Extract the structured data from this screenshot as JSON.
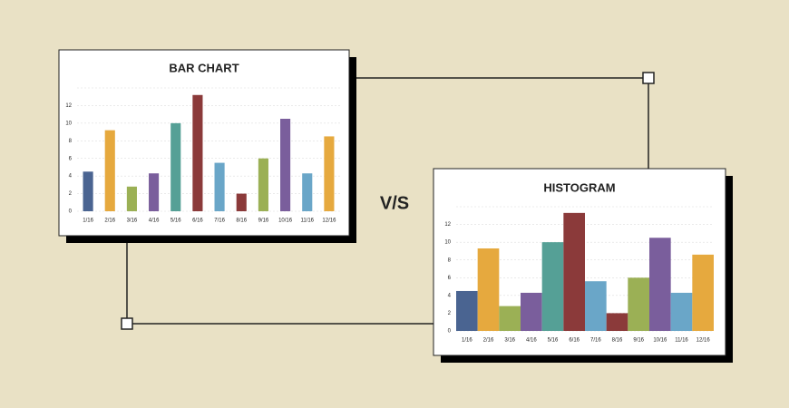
{
  "label": "V/S",
  "chart_data": [
    {
      "type": "bar",
      "title": "BAR CHART",
      "categories": [
        "1/16",
        "2/16",
        "3/16",
        "4/16",
        "5/16",
        "6/16",
        "7/16",
        "8/16",
        "9/16",
        "10/16",
        "11/16",
        "12/16"
      ],
      "values": [
        4.5,
        9.2,
        2.8,
        4.3,
        10,
        13.2,
        5.5,
        2,
        6,
        10.5,
        4.3,
        8.5
      ],
      "colors": [
        "#4a6491",
        "#e6a93e",
        "#9bb055",
        "#7a5e9c",
        "#55a096",
        "#8b3a3a",
        "#6aa6c8",
        "#8b3a3a",
        "#9bb055",
        "#7a5e9c",
        "#6aa6c8",
        "#e6a93e"
      ],
      "ylim": [
        0,
        14
      ],
      "yticks": [
        0,
        2,
        4,
        6,
        8,
        10,
        12
      ],
      "grid": true
    },
    {
      "type": "histogram",
      "title": "HISTOGRAM",
      "categories": [
        "1/16",
        "2/16",
        "3/16",
        "4/16",
        "5/16",
        "6/16",
        "7/16",
        "8/16",
        "9/16",
        "10/16",
        "11/16",
        "12/16"
      ],
      "values": [
        4.5,
        9.3,
        2.8,
        4.3,
        10,
        13.3,
        5.6,
        2,
        6,
        10.5,
        4.3,
        8.6
      ],
      "colors": [
        "#4a6491",
        "#e6a93e",
        "#9bb055",
        "#7a5e9c",
        "#55a096",
        "#8b3a3a",
        "#6aa6c8",
        "#8b3a3a",
        "#9bb055",
        "#7a5e9c",
        "#6aa6c8",
        "#e6a93e"
      ],
      "ylim": [
        0,
        14
      ],
      "yticks": [
        0,
        2,
        4,
        6,
        8,
        10,
        12
      ],
      "grid": true
    }
  ]
}
